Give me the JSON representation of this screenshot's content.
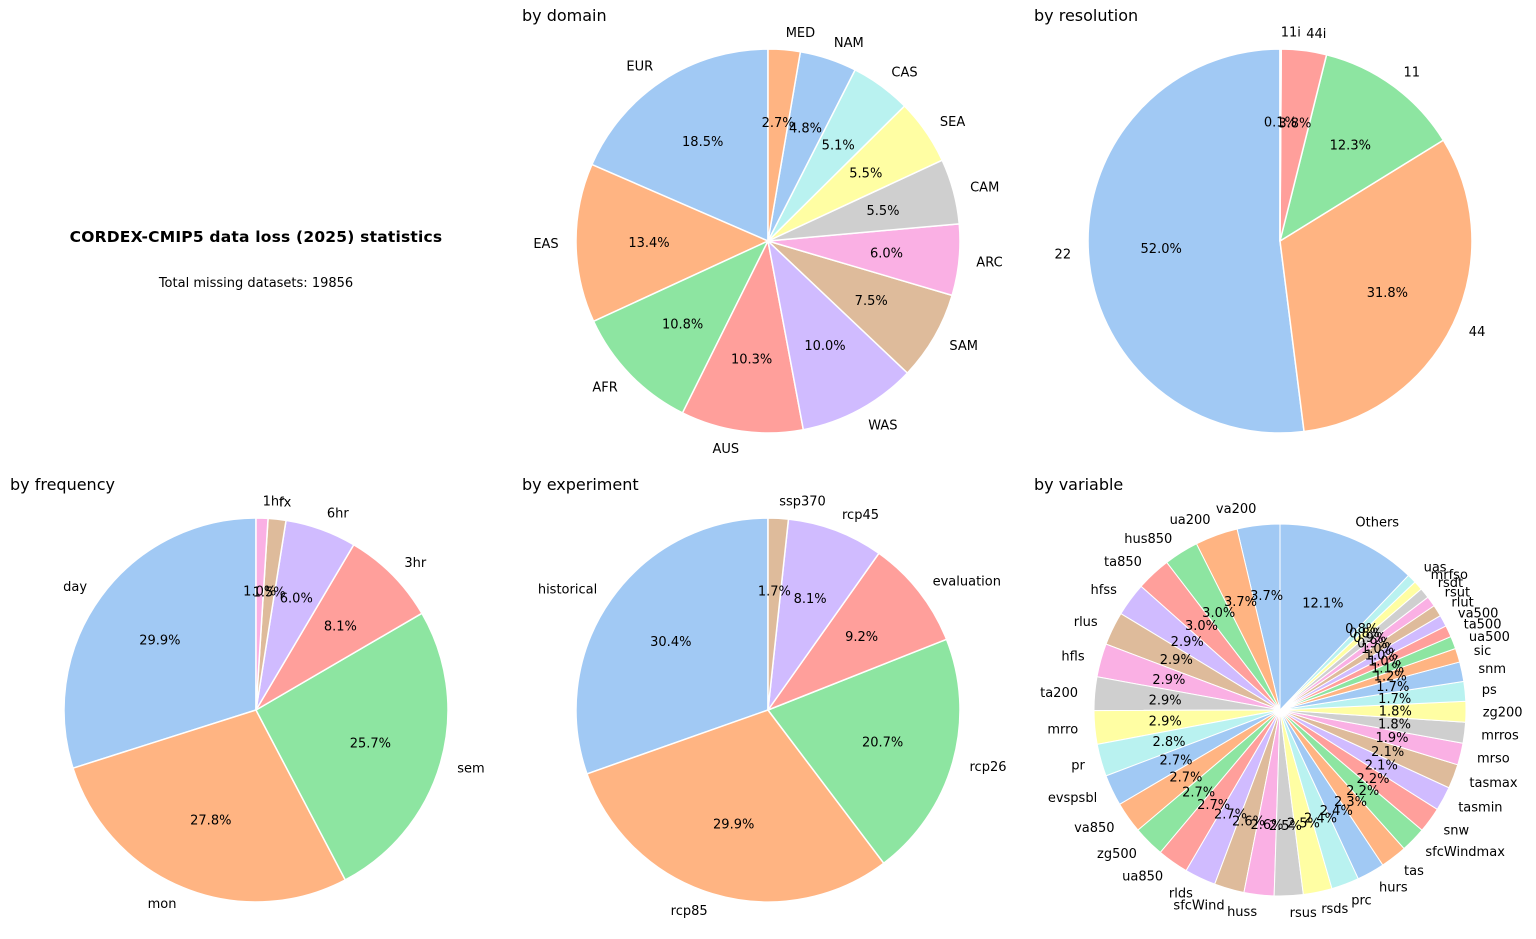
{
  "page": {
    "background": "#ffffff"
  },
  "stats": {
    "title": "CORDEX-CMIP5 data loss (2025) statistics",
    "subtitle": "Total missing datasets: 19856",
    "total_missing_datasets": 19856
  },
  "palette": [
    "#a1c9f4",
    "#ffb482",
    "#8de5a1",
    "#ff9f9b",
    "#d0bbff",
    "#debb9b",
    "#fab0e4",
    "#cfcfcf",
    "#fffea3",
    "#b9f2f0"
  ],
  "chart_data": [
    {
      "type": "pie",
      "title": "by domain",
      "start_angle": 90,
      "direction": "counterclockwise",
      "labels": [
        "EUR",
        "EAS",
        "AFR",
        "AUS",
        "WAS",
        "SAM",
        "ARC",
        "CAM",
        "SEA",
        "CAS",
        "NAM",
        "MED"
      ],
      "values": [
        18.5,
        13.4,
        10.8,
        10.3,
        10.0,
        7.5,
        6.0,
        5.5,
        5.5,
        5.1,
        4.8,
        2.7
      ],
      "unit": "%"
    },
    {
      "type": "pie",
      "title": "by resolution",
      "start_angle": 90,
      "direction": "counterclockwise",
      "labels": [
        "22",
        "44",
        "11",
        "44i",
        "11i"
      ],
      "values": [
        52.0,
        31.8,
        12.3,
        3.8,
        0.1
      ],
      "unit": "%"
    },
    {
      "type": "pie",
      "title": "by frequency",
      "start_angle": 90,
      "direction": "counterclockwise",
      "labels": [
        "day",
        "mon",
        "sem",
        "3hr",
        "6hr",
        "fx",
        "1hr"
      ],
      "values": [
        29.9,
        27.8,
        25.7,
        8.1,
        6.0,
        1.5,
        1.0
      ],
      "unit": "%"
    },
    {
      "type": "pie",
      "title": "by experiment",
      "start_angle": 90,
      "direction": "counterclockwise",
      "labels": [
        "historical",
        "rcp85",
        "rcp26",
        "evaluation",
        "rcp45",
        "ssp370"
      ],
      "values": [
        30.4,
        29.9,
        20.7,
        9.2,
        8.1,
        1.7
      ],
      "unit": "%"
    },
    {
      "type": "pie",
      "title": "by variable",
      "start_angle": 90,
      "direction": "counterclockwise",
      "labels": [
        "va200",
        "ua200",
        "hus850",
        "ta850",
        "hfss",
        "rlus",
        "hfls",
        "ta200",
        "mrro",
        "pr",
        "evspsbl",
        "va850",
        "zg500",
        "ua850",
        "rlds",
        "sfcWind",
        "huss",
        "rsus",
        "rsds",
        "prc",
        "hurs",
        "tas",
        "sfcWindmax",
        "snw",
        "tasmin",
        "tasmax",
        "mrso",
        "mrros",
        "zg200",
        "ps",
        "snm",
        "sic",
        "ua500",
        "ta500",
        "va500",
        "rlut",
        "rsut",
        "rsdt",
        "mrfso",
        "uas",
        "Others"
      ],
      "values": [
        3.7,
        3.7,
        3.0,
        3.0,
        2.9,
        2.9,
        2.9,
        2.9,
        2.9,
        2.8,
        2.7,
        2.7,
        2.7,
        2.7,
        2.7,
        2.6,
        2.6,
        2.5,
        2.5,
        2.4,
        2.4,
        2.3,
        2.2,
        2.2,
        2.1,
        2.1,
        1.9,
        1.8,
        1.8,
        1.7,
        1.7,
        1.2,
        1.1,
        1.0,
        1.0,
        1.0,
        0.9,
        0.9,
        0.8,
        0.8,
        12.1
      ],
      "unit": "%"
    }
  ]
}
